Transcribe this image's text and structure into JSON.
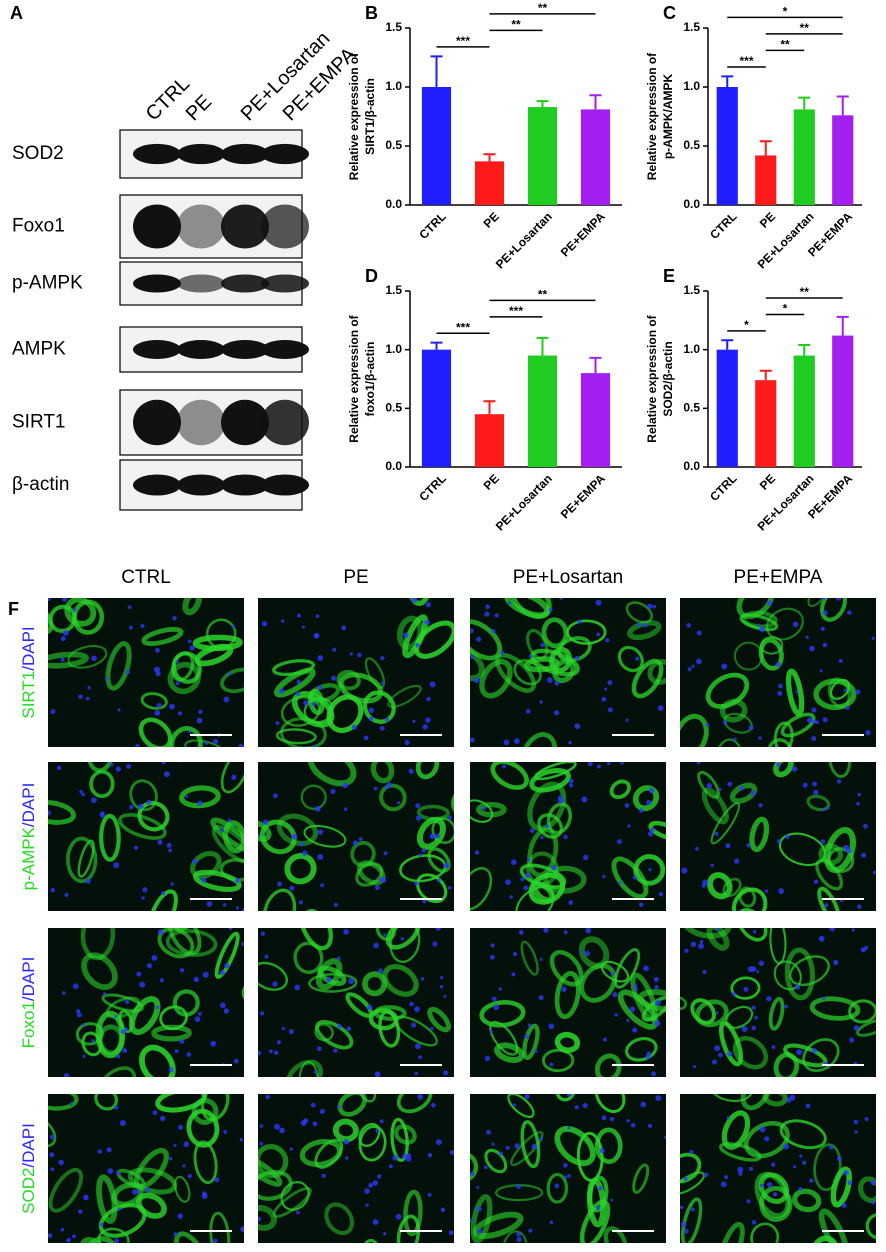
{
  "panel_a": {
    "letter": "A",
    "columns": [
      "CTRL",
      "PE",
      "PE+Losartan",
      "PE+EMPA"
    ],
    "rows": [
      "SOD2",
      "Foxo1",
      "p-AMPK",
      "AMPK",
      "SIRT1",
      "β-actin"
    ]
  },
  "chart_data": [
    {
      "type": "bar",
      "letter": "B",
      "ylabel": [
        "Relative expression of",
        "SIRT1/β-actin"
      ],
      "categories": [
        "CTRL",
        "PE",
        "PE+Losartan",
        "PE+EMPA"
      ],
      "values": [
        1.0,
        0.37,
        0.83,
        0.81
      ],
      "errors": [
        0.26,
        0.06,
        0.05,
        0.12
      ],
      "colors": [
        "#1f1fff",
        "#ff1a1a",
        "#1fcc1f",
        "#a21ff0"
      ],
      "ylim": [
        0,
        1.5
      ],
      "yticks": [
        {
          "value": 0,
          "label": "0.0"
        },
        0.5,
        {
          "value": 1,
          "label": "1.0"
        },
        1.5
      ],
      "significance": [
        {
          "label": "***",
          "from": 0,
          "to": 1
        },
        {
          "label": "**",
          "from": 1,
          "to": 2
        },
        {
          "label": "**",
          "from": 1,
          "to": 3
        }
      ]
    },
    {
      "type": "bar",
      "letter": "C",
      "ylabel": [
        "Relative expression of",
        "p-AMPK/AMPK"
      ],
      "categories": [
        "CTRL",
        "PE",
        "PE+Losartan",
        "PE+EMPA"
      ],
      "values": [
        1.0,
        0.42,
        0.81,
        0.76
      ],
      "errors": [
        0.09,
        0.12,
        0.1,
        0.16
      ],
      "colors": [
        "#1f1fff",
        "#ff1a1a",
        "#1fcc1f",
        "#a21ff0"
      ],
      "ylim": [
        0,
        1.5
      ],
      "yticks": [
        {
          "value": 0,
          "label": "0.0"
        },
        0.5,
        {
          "value": 1,
          "label": "1.0"
        },
        1.5
      ],
      "significance": [
        {
          "label": "***",
          "from": 0,
          "to": 1
        },
        {
          "label": "**",
          "from": 1,
          "to": 2
        },
        {
          "label": "**",
          "from": 1,
          "to": 3
        },
        {
          "label": "*",
          "from": 0,
          "to": 3
        }
      ]
    },
    {
      "type": "bar",
      "letter": "D",
      "ylabel": [
        "Relative expression of",
        "foxo1/β-actin"
      ],
      "categories": [
        "CTRL",
        "PE",
        "PE+Losartan",
        "PE+EMPA"
      ],
      "values": [
        1.0,
        0.45,
        0.95,
        0.8
      ],
      "errors": [
        0.06,
        0.11,
        0.15,
        0.13
      ],
      "colors": [
        "#1f1fff",
        "#ff1a1a",
        "#1fcc1f",
        "#a21ff0"
      ],
      "ylim": [
        0,
        1.5
      ],
      "yticks": [
        {
          "value": 0,
          "label": "0.0"
        },
        0.5,
        {
          "value": 1,
          "label": "1.0"
        },
        1.5
      ],
      "significance": [
        {
          "label": "***",
          "from": 0,
          "to": 1
        },
        {
          "label": "***",
          "from": 1,
          "to": 2
        },
        {
          "label": "**",
          "from": 1,
          "to": 3
        }
      ]
    },
    {
      "type": "bar",
      "letter": "E",
      "ylabel": [
        "Relative expression of",
        "SOD2/β-actin"
      ],
      "categories": [
        "CTRL",
        "PE",
        "PE+Losartan",
        "PE+EMPA"
      ],
      "values": [
        1.0,
        0.74,
        0.95,
        1.12
      ],
      "errors": [
        0.08,
        0.08,
        0.09,
        0.16
      ],
      "colors": [
        "#1f1fff",
        "#ff1a1a",
        "#1fcc1f",
        "#a21ff0"
      ],
      "ylim": [
        0,
        1.5
      ],
      "yticks": [
        {
          "value": 0,
          "label": "0.0"
        },
        0.5,
        {
          "value": 1,
          "label": "1.0"
        },
        1.5
      ],
      "significance": [
        {
          "label": "*",
          "from": 0,
          "to": 1
        },
        {
          "label": "*",
          "from": 1,
          "to": 2
        },
        {
          "label": "**",
          "from": 1,
          "to": 3
        }
      ]
    }
  ],
  "panel_f": {
    "letter": "F",
    "columns": [
      "CTRL",
      "PE",
      "PE+Losartan",
      "PE+EMPA"
    ],
    "rows": [
      {
        "marker": "SIRT1",
        "stain": "/DAPI"
      },
      {
        "marker": "p-AMPK",
        "stain": "/DAPI"
      },
      {
        "marker": "Foxo1",
        "stain": "/DAPI"
      },
      {
        "marker": "SOD2",
        "stain": "/DAPI"
      }
    ]
  }
}
